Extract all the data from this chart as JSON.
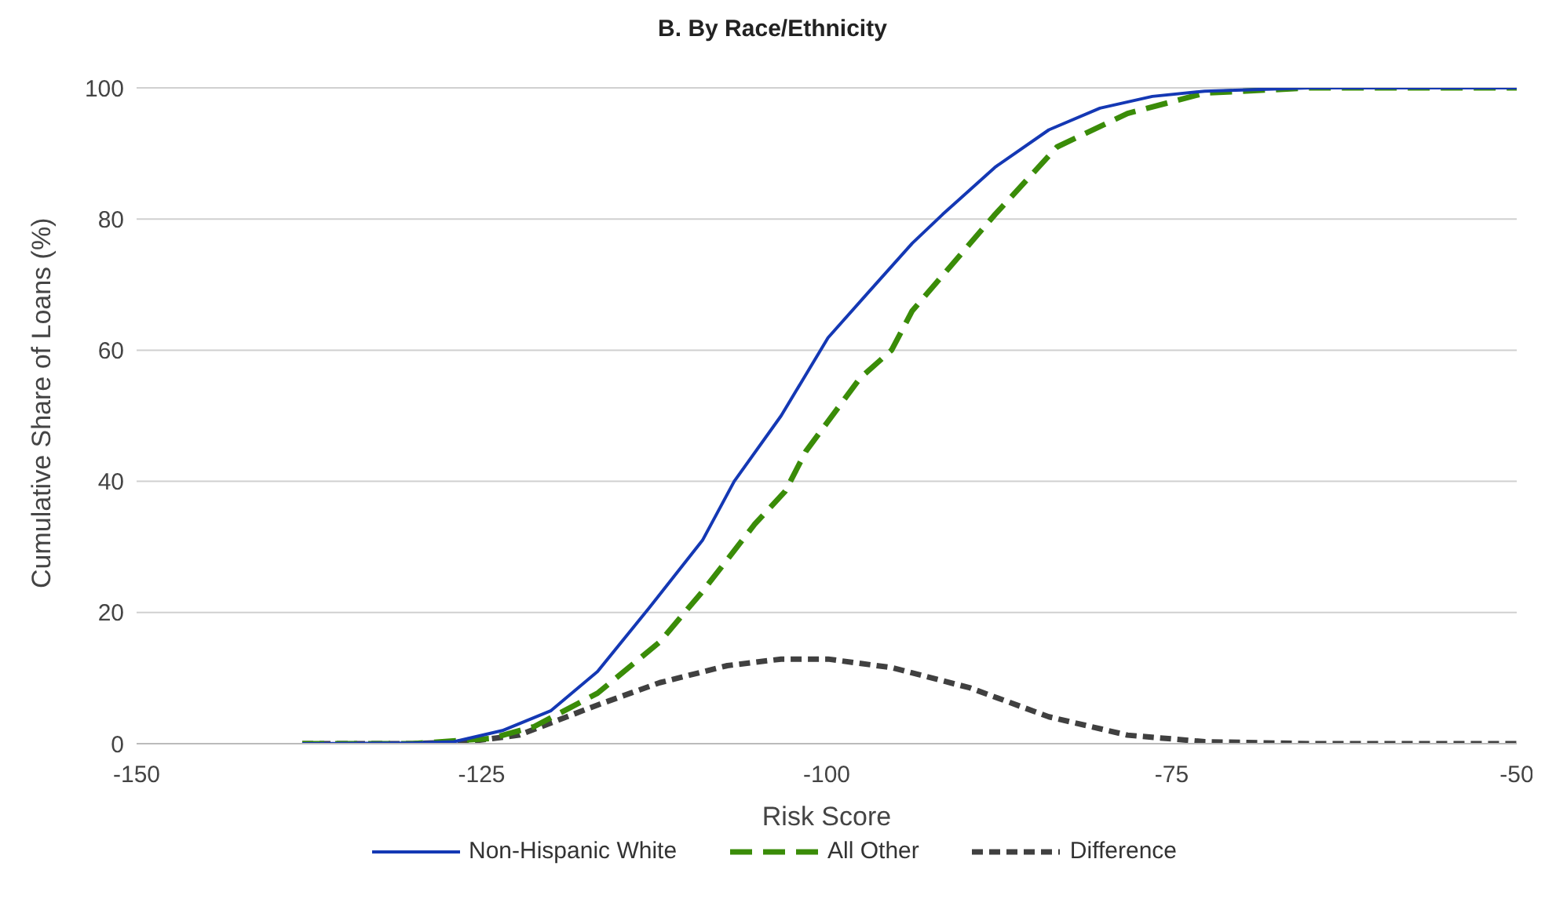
{
  "chart_data": {
    "type": "line",
    "title": "B. By Race/Ethnicity",
    "xlabel": "Risk Score",
    "ylabel": "Cumulative Share of Loans (%)",
    "xlim": [
      -150,
      -50
    ],
    "xticks": [
      -150,
      -125,
      -100,
      -75,
      -50
    ],
    "ylim": [
      0,
      100
    ],
    "yticks": [
      0,
      20,
      40,
      60,
      80,
      100
    ],
    "grid": "y",
    "legend": "bottom",
    "marker": "none",
    "series": [
      {
        "name": "Non-Hispanic White",
        "color": "#1438b4",
        "line_style": "solid",
        "x": [
          -138,
          -130,
          -127,
          -123.5,
          -120,
          -116.6,
          -112.9,
          -109,
          -106.7,
          -103.3,
          -99.9,
          -96.9,
          -93.8,
          -91.6,
          -87.8,
          -83.9,
          -80.2,
          -76.4,
          -72.6,
          -65,
          -50
        ],
        "values": [
          0,
          0.1,
          0.3,
          2,
          5,
          11,
          20.6,
          31,
          40,
          50,
          61.9,
          69,
          76.3,
          80.7,
          87.9,
          93.6,
          96.9,
          98.7,
          99.5,
          100,
          100
        ]
      },
      {
        "name": "All Other",
        "color": "#3a8c08",
        "line_style": "dashed",
        "x": [
          -138,
          -130,
          -124.3,
          -121.2,
          -116.6,
          -112.1,
          -109,
          -105.2,
          -103,
          -101.5,
          -97.6,
          -95.3,
          -93.8,
          -87.8,
          -83.3,
          -78.2,
          -72.6,
          -65,
          -50
        ],
        "values": [
          0,
          0,
          0.8,
          2.6,
          7.7,
          15.5,
          23.2,
          33.5,
          38.5,
          44.6,
          55.7,
          60,
          66,
          80.7,
          91,
          96.1,
          99.2,
          100,
          100
        ]
      },
      {
        "name": "Difference",
        "color": "#404040",
        "line_style": "dotted",
        "x": [
          -138,
          -130,
          -126,
          -122.3,
          -116.6,
          -112.1,
          -107.2,
          -103.3,
          -99.9,
          -95.3,
          -89.6,
          -83.9,
          -78.2,
          -72.6,
          -65,
          -50
        ],
        "values": [
          0,
          0,
          0.3,
          1.3,
          5.9,
          9.3,
          11.9,
          12.9,
          12.9,
          11.6,
          8.5,
          4.1,
          1.3,
          0.3,
          0,
          0
        ]
      }
    ]
  }
}
